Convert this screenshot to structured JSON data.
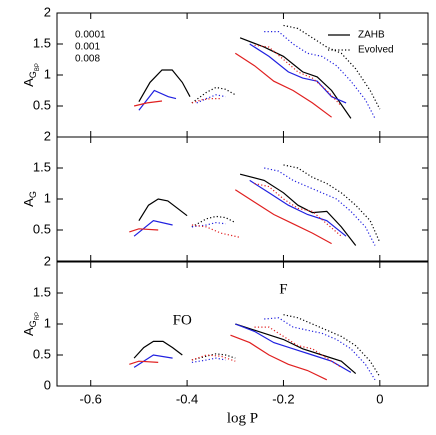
{
  "chart_data": [
    {
      "type": "line",
      "ylabel": "A",
      "ylabel_sub": "G",
      "ylabel_subsub": "BP",
      "xlim": [
        -0.67,
        0.1
      ],
      "ylim": [
        0,
        2
      ],
      "yticks": [
        0.5,
        1,
        1.5,
        2
      ],
      "legend": {
        "corner": "top",
        "colors": [
          {
            "label": "0.0001",
            "color": "#000000"
          },
          {
            "label": "0.001",
            "color": "#2020e0"
          },
          {
            "label": "0.008",
            "color": "#e02020"
          }
        ],
        "styles": [
          {
            "label": "ZAHB",
            "dash": "solid"
          },
          {
            "label": "Evolved",
            "dash": "dotted"
          }
        ]
      },
      "series": [
        {
          "color": "#000000",
          "dash": "solid",
          "x": [
            -0.5,
            -0.477,
            -0.452,
            -0.431,
            -0.41,
            -0.394,
            null,
            -0.29,
            -0.24,
            -0.2,
            -0.16,
            -0.13,
            -0.1,
            -0.06
          ],
          "values": [
            0.57,
            0.88,
            1.08,
            1.08,
            0.88,
            0.65,
            null,
            1.6,
            1.45,
            1.3,
            1.05,
            0.97,
            0.75,
            0.3
          ]
        },
        {
          "color": "#2020e0",
          "dash": "solid",
          "x": [
            -0.5,
            -0.468,
            -0.439,
            -0.423,
            null,
            -0.27,
            -0.23,
            -0.19,
            -0.16,
            -0.13,
            -0.1,
            -0.07
          ],
          "values": [
            0.43,
            0.75,
            0.65,
            0.62,
            null,
            1.5,
            1.3,
            1.05,
            0.95,
            0.9,
            0.65,
            0.55
          ]
        },
        {
          "color": "#e02020",
          "dash": "solid",
          "x": [
            -0.51,
            -0.483,
            -0.452,
            null,
            -0.3,
            -0.26,
            -0.22,
            -0.18,
            -0.14,
            -0.1
          ],
          "values": [
            0.5,
            0.55,
            0.58,
            null,
            1.35,
            1.15,
            0.9,
            0.75,
            0.55,
            0.32
          ]
        },
        {
          "color": "#000000",
          "dash": "dotted",
          "x": [
            -0.39,
            -0.36,
            -0.34,
            -0.32,
            -0.3,
            null,
            -0.2,
            -0.17,
            -0.14,
            -0.11,
            -0.08,
            -0.05,
            -0.02,
            0
          ],
          "values": [
            0.55,
            0.72,
            0.8,
            0.77,
            0.68,
            null,
            1.8,
            1.75,
            1.6,
            1.45,
            1.35,
            1.1,
            0.75,
            0.45
          ]
        },
        {
          "color": "#2020e0",
          "dash": "dotted",
          "x": [
            -0.38,
            -0.36,
            -0.34,
            -0.32,
            null,
            -0.24,
            -0.21,
            -0.18,
            -0.15,
            -0.12,
            -0.09,
            -0.06,
            -0.03,
            -0.01
          ],
          "values": [
            0.55,
            0.62,
            0.68,
            0.65,
            null,
            1.7,
            1.7,
            1.5,
            1.35,
            1.3,
            1.15,
            0.9,
            0.6,
            0.3
          ]
        },
        {
          "color": "#e02020",
          "dash": "dotted",
          "x": [
            -0.39,
            -0.37,
            -0.35,
            -0.33,
            null,
            -0.26,
            -0.23,
            -0.2,
            -0.17,
            -0.14,
            -0.11,
            -0.08
          ],
          "values": [
            0.55,
            0.6,
            0.62,
            0.62,
            null,
            1.48,
            1.45,
            1.25,
            1.05,
            0.95,
            0.75,
            0.5
          ]
        }
      ]
    },
    {
      "type": "line",
      "ylabel": "A",
      "ylabel_sub": "G",
      "xlim": [
        -0.67,
        0.1
      ],
      "ylim": [
        0,
        2
      ],
      "yticks": [
        0.5,
        1,
        1.5,
        2
      ],
      "series": [
        {
          "color": "#000000",
          "dash": "solid",
          "x": [
            -0.5,
            -0.48,
            -0.46,
            -0.44,
            -0.42,
            -0.4,
            null,
            -0.29,
            -0.24,
            -0.2,
            -0.17,
            -0.14,
            -0.11,
            -0.08,
            -0.05
          ],
          "values": [
            0.65,
            0.9,
            1.0,
            0.97,
            0.85,
            0.73,
            null,
            1.4,
            1.3,
            1.1,
            0.9,
            0.78,
            0.8,
            0.55,
            0.25
          ]
        },
        {
          "color": "#2020e0",
          "dash": "solid",
          "x": [
            -0.51,
            -0.47,
            -0.43,
            null,
            -0.27,
            -0.23,
            -0.19,
            -0.15,
            -0.11,
            -0.07
          ],
          "values": [
            0.4,
            0.65,
            0.58,
            null,
            1.3,
            1.1,
            0.9,
            0.75,
            0.65,
            0.4
          ]
        },
        {
          "color": "#e02020",
          "dash": "solid",
          "x": [
            -0.52,
            -0.5,
            -0.46,
            null,
            -0.3,
            -0.26,
            -0.22,
            -0.18,
            -0.14,
            -0.1
          ],
          "values": [
            0.47,
            0.52,
            0.5,
            null,
            1.15,
            0.95,
            0.75,
            0.6,
            0.45,
            0.28
          ]
        },
        {
          "color": "#000000",
          "dash": "dotted",
          "x": [
            -0.39,
            -0.36,
            -0.34,
            -0.32,
            -0.3,
            null,
            -0.2,
            -0.17,
            -0.14,
            -0.11,
            -0.08,
            -0.05,
            -0.02,
            0
          ],
          "values": [
            0.55,
            0.68,
            0.72,
            0.7,
            0.62,
            null,
            1.55,
            1.5,
            1.35,
            1.25,
            1.1,
            0.9,
            0.65,
            0.3
          ]
        },
        {
          "color": "#2020e0",
          "dash": "dotted",
          "x": [
            -0.39,
            -0.36,
            -0.34,
            -0.32,
            null,
            -0.24,
            -0.21,
            -0.18,
            -0.15,
            -0.12,
            -0.09,
            -0.06,
            -0.03,
            -0.01
          ],
          "values": [
            0.55,
            0.58,
            0.62,
            0.6,
            null,
            1.5,
            1.45,
            1.3,
            1.2,
            1.1,
            1.0,
            0.8,
            0.55,
            0.25
          ]
        },
        {
          "color": "#e02020",
          "dash": "dotted",
          "x": [
            -0.39,
            -0.36,
            -0.33,
            -0.29,
            null,
            -0.26,
            -0.23,
            -0.2,
            -0.17,
            -0.14,
            -0.11,
            -0.08
          ],
          "values": [
            0.58,
            0.55,
            0.45,
            0.38,
            null,
            1.25,
            1.2,
            1.0,
            0.85,
            0.8,
            0.6,
            0.4
          ]
        }
      ]
    },
    {
      "type": "line",
      "ylabel": "A",
      "ylabel_sub": "G",
      "ylabel_subsub": "RP",
      "xlabel": "log P",
      "xlim": [
        -0.67,
        0.1
      ],
      "ylim": [
        0,
        2
      ],
      "yticks": [
        0,
        0.5,
        1,
        1.5,
        2
      ],
      "xticks": [
        -0.6,
        -0.4,
        -0.2,
        0
      ],
      "annotations": [
        {
          "text": "FO",
          "x": -0.41,
          "y": 1.05
        },
        {
          "text": "F",
          "x": -0.2,
          "y": 1.55
        }
      ],
      "series": [
        {
          "color": "#000000",
          "dash": "solid",
          "x": [
            -0.51,
            -0.49,
            -0.47,
            -0.45,
            -0.43,
            -0.41,
            null,
            -0.3,
            -0.24,
            -0.2,
            -0.16,
            -0.12,
            -0.08,
            -0.05
          ],
          "values": [
            0.45,
            0.62,
            0.72,
            0.72,
            0.62,
            0.5,
            null,
            1.0,
            0.85,
            0.75,
            0.6,
            0.5,
            0.4,
            0.2
          ]
        },
        {
          "color": "#2020e0",
          "dash": "solid",
          "x": [
            -0.51,
            -0.47,
            -0.43,
            null,
            -0.3,
            -0.26,
            -0.22,
            -0.18,
            -0.14,
            -0.1,
            -0.06
          ],
          "values": [
            0.3,
            0.5,
            0.45,
            null,
            1.0,
            0.88,
            0.7,
            0.6,
            0.5,
            0.4,
            0.22
          ]
        },
        {
          "color": "#e02020",
          "dash": "solid",
          "x": [
            -0.52,
            -0.5,
            -0.46,
            null,
            -0.31,
            -0.27,
            -0.23,
            -0.19,
            -0.15,
            -0.11
          ],
          "values": [
            0.35,
            0.4,
            0.38,
            null,
            0.82,
            0.7,
            0.5,
            0.35,
            0.25,
            0.1
          ]
        },
        {
          "color": "#000000",
          "dash": "dotted",
          "x": [
            -0.39,
            -0.36,
            -0.34,
            -0.32,
            -0.3,
            null,
            -0.2,
            -0.17,
            -0.14,
            -0.11,
            -0.08,
            -0.05,
            -0.02,
            0
          ],
          "values": [
            0.42,
            0.48,
            0.52,
            0.5,
            0.45,
            null,
            1.15,
            1.1,
            1.0,
            0.9,
            0.8,
            0.65,
            0.4,
            0.15
          ]
        },
        {
          "color": "#2020e0",
          "dash": "dotted",
          "x": [
            -0.39,
            -0.36,
            -0.34,
            -0.32,
            null,
            -0.24,
            -0.21,
            -0.18,
            -0.15,
            -0.12,
            -0.09,
            -0.06,
            -0.03,
            -0.01
          ],
          "values": [
            0.38,
            0.42,
            0.45,
            0.42,
            null,
            1.08,
            1.1,
            0.95,
            0.9,
            0.85,
            0.75,
            0.6,
            0.35,
            0.1
          ]
        },
        {
          "color": "#e02020",
          "dash": "dotted",
          "x": [
            -0.39,
            -0.36,
            -0.33,
            -0.3,
            null,
            -0.26,
            -0.23,
            -0.2,
            -0.17,
            -0.14,
            -0.11,
            -0.08
          ],
          "values": [
            0.42,
            0.5,
            0.48,
            0.4,
            null,
            0.95,
            0.95,
            0.8,
            0.65,
            0.6,
            0.45,
            0.3
          ]
        }
      ]
    }
  ]
}
